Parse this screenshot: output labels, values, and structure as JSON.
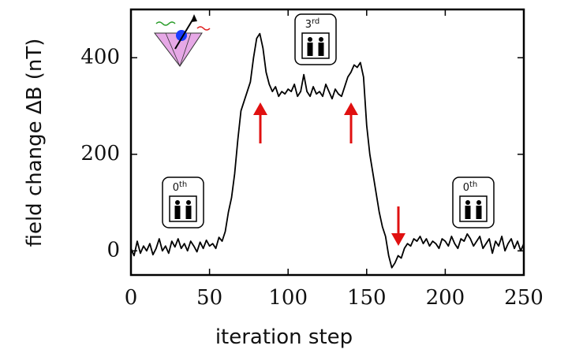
{
  "chart_data": {
    "type": "line",
    "xlabel": "iteration step",
    "ylabel": "field change ΔB (nT)",
    "xlim": [
      0,
      250
    ],
    "xticks": [
      0,
      50,
      100,
      150,
      200,
      250
    ],
    "ylim": [
      -50,
      500
    ],
    "yticks": [
      0,
      200,
      400
    ],
    "annotations": [
      {
        "base": "0",
        "sup": "th"
      },
      {
        "base": "3",
        "sup": "rd"
      },
      {
        "base": "0",
        "sup": "th"
      }
    ],
    "series": [
      {
        "color": "#000000",
        "x": [
          0,
          2,
          4,
          6,
          8,
          10,
          12,
          14,
          16,
          18,
          20,
          22,
          24,
          26,
          28,
          30,
          32,
          34,
          36,
          38,
          40,
          42,
          44,
          46,
          48,
          50,
          52,
          54,
          56,
          58,
          60,
          62,
          64,
          66,
          68,
          70,
          72,
          74,
          76,
          78,
          80,
          82,
          84,
          86,
          88,
          90,
          92,
          94,
          96,
          98,
          100,
          102,
          104,
          106,
          108,
          110,
          112,
          114,
          116,
          118,
          120,
          122,
          124,
          126,
          128,
          130,
          132,
          134,
          136,
          138,
          140,
          142,
          144,
          146,
          148,
          150,
          152,
          154,
          156,
          158,
          160,
          162,
          164,
          166,
          168,
          170,
          172,
          174,
          176,
          178,
          180,
          182,
          184,
          186,
          188,
          190,
          192,
          194,
          196,
          198,
          200,
          202,
          204,
          206,
          208,
          210,
          212,
          214,
          216,
          218,
          220,
          222,
          224,
          226,
          228,
          230,
          232,
          234,
          236,
          238,
          240,
          242,
          244,
          246,
          248,
          250
        ],
        "values": [
          5,
          -10,
          20,
          -5,
          10,
          0,
          15,
          -8,
          5,
          25,
          0,
          10,
          -5,
          20,
          8,
          25,
          5,
          15,
          0,
          20,
          10,
          -2,
          18,
          5,
          22,
          10,
          15,
          5,
          28,
          20,
          40,
          80,
          110,
          160,
          230,
          290,
          310,
          330,
          350,
          400,
          440,
          450,
          420,
          370,
          345,
          330,
          340,
          320,
          330,
          325,
          335,
          330,
          345,
          320,
          330,
          365,
          330,
          320,
          340,
          325,
          330,
          320,
          345,
          330,
          315,
          335,
          325,
          320,
          340,
          360,
          370,
          385,
          380,
          390,
          360,
          260,
          200,
          160,
          120,
          80,
          50,
          30,
          -10,
          -35,
          -25,
          -10,
          -15,
          5,
          15,
          10,
          25,
          20,
          30,
          15,
          25,
          10,
          20,
          15,
          5,
          25,
          20,
          10,
          30,
          15,
          5,
          25,
          20,
          35,
          25,
          10,
          20,
          30,
          5,
          15,
          25,
          -5,
          20,
          10,
          30,
          0,
          15,
          25,
          5,
          20,
          0,
          15
        ]
      }
    ]
  }
}
